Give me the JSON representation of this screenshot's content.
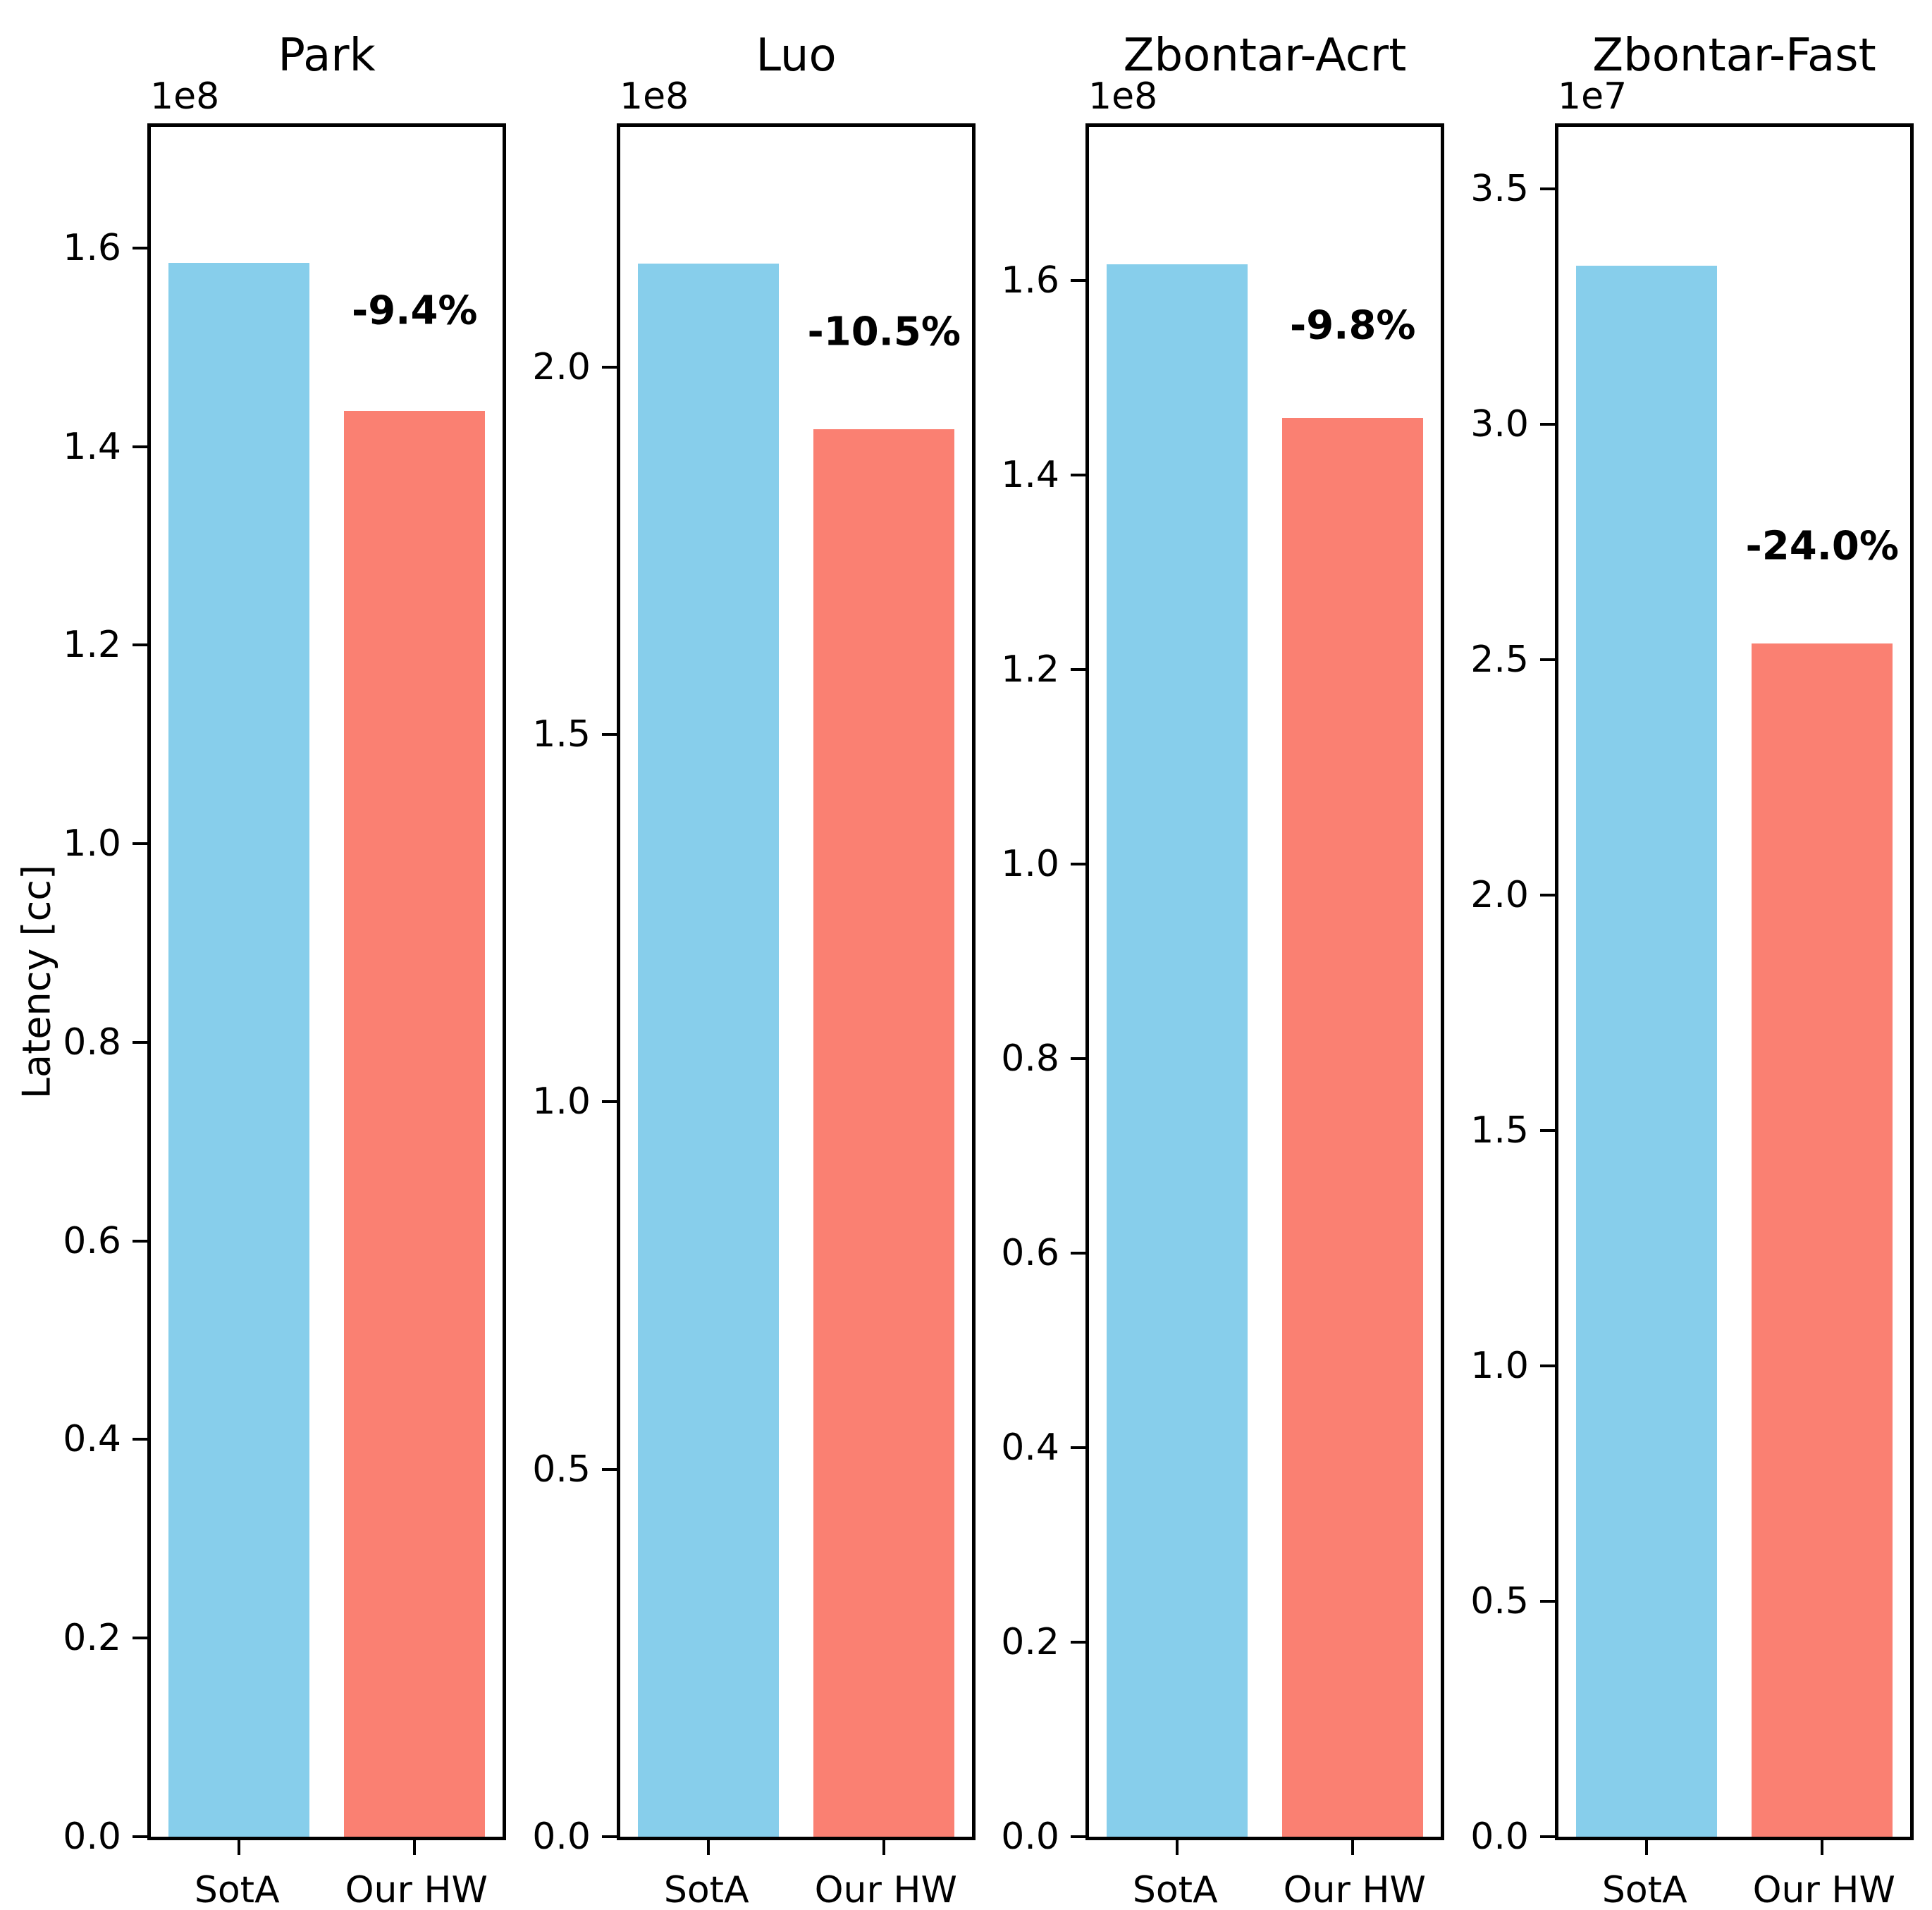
{
  "figure": {
    "ylabel": "Latency [cc]",
    "colors": {
      "sota_bar": "#87CEEB",
      "ourhw_bar": "#FA8072",
      "axis": "#000000",
      "background": "#ffffff"
    }
  },
  "chart_data": [
    {
      "type": "bar",
      "title": "Park",
      "offset_text": "1e8",
      "unit": 100000000,
      "categories": [
        "SotA",
        "Our HW"
      ],
      "values": [
        1.585,
        1.436
      ],
      "values_absolute": [
        158500000,
        143600000
      ],
      "annotation": {
        "text": "-9.4%",
        "y": 1.537
      },
      "ylim": [
        0,
        1.722
      ],
      "grid": false,
      "yticks": [
        {
          "v": 0.0,
          "label": "0.0"
        },
        {
          "v": 0.2,
          "label": "0.2"
        },
        {
          "v": 0.4,
          "label": "0.4"
        },
        {
          "v": 0.6,
          "label": "0.6"
        },
        {
          "v": 0.8,
          "label": "0.8"
        },
        {
          "v": 1.0,
          "label": "1.0"
        },
        {
          "v": 1.2,
          "label": "1.2"
        },
        {
          "v": 1.4,
          "label": "1.4"
        },
        {
          "v": 1.6,
          "label": "1.6"
        }
      ]
    },
    {
      "type": "bar",
      "title": "Luo",
      "offset_text": "1e8",
      "unit": 100000000,
      "categories": [
        "SotA",
        "Our HW"
      ],
      "values": [
        2.141,
        1.916
      ],
      "values_absolute": [
        214100000,
        191600000
      ],
      "annotation": {
        "text": "-10.5%",
        "y": 2.048
      },
      "ylim": [
        0,
        2.327
      ],
      "grid": false,
      "yticks": [
        {
          "v": 0.0,
          "label": "0.0"
        },
        {
          "v": 0.5,
          "label": "0.5"
        },
        {
          "v": 1.0,
          "label": "1.0"
        },
        {
          "v": 1.5,
          "label": "1.5"
        },
        {
          "v": 2.0,
          "label": "2.0"
        }
      ]
    },
    {
      "type": "bar",
      "title": "Zbontar-Acrt",
      "offset_text": "1e8",
      "unit": 100000000,
      "categories": [
        "SotA",
        "Our HW"
      ],
      "values": [
        1.617,
        1.459
      ],
      "values_absolute": [
        161700000,
        145900000
      ],
      "annotation": {
        "text": "-9.8%",
        "y": 1.554
      },
      "ylim": [
        0,
        1.758
      ],
      "grid": false,
      "yticks": [
        {
          "v": 0.0,
          "label": "0.0"
        },
        {
          "v": 0.2,
          "label": "0.2"
        },
        {
          "v": 0.4,
          "label": "0.4"
        },
        {
          "v": 0.6,
          "label": "0.6"
        },
        {
          "v": 0.8,
          "label": "0.8"
        },
        {
          "v": 1.0,
          "label": "1.0"
        },
        {
          "v": 1.2,
          "label": "1.2"
        },
        {
          "v": 1.4,
          "label": "1.4"
        },
        {
          "v": 1.6,
          "label": "1.6"
        }
      ]
    },
    {
      "type": "bar",
      "title": "Zbontar-Fast",
      "offset_text": "1e7",
      "unit": 10000000,
      "categories": [
        "SotA",
        "Our HW"
      ],
      "values": [
        3.336,
        2.534
      ],
      "values_absolute": [
        33360000,
        25340000
      ],
      "annotation": {
        "text": "-24.0%",
        "y": 2.741
      },
      "ylim": [
        0,
        3.631
      ],
      "grid": false,
      "yticks": [
        {
          "v": 0.0,
          "label": "0.0"
        },
        {
          "v": 0.5,
          "label": "0.5"
        },
        {
          "v": 1.0,
          "label": "1.0"
        },
        {
          "v": 1.5,
          "label": "1.5"
        },
        {
          "v": 2.0,
          "label": "2.0"
        },
        {
          "v": 2.5,
          "label": "2.5"
        },
        {
          "v": 3.0,
          "label": "3.0"
        },
        {
          "v": 3.5,
          "label": "3.5"
        }
      ]
    }
  ]
}
